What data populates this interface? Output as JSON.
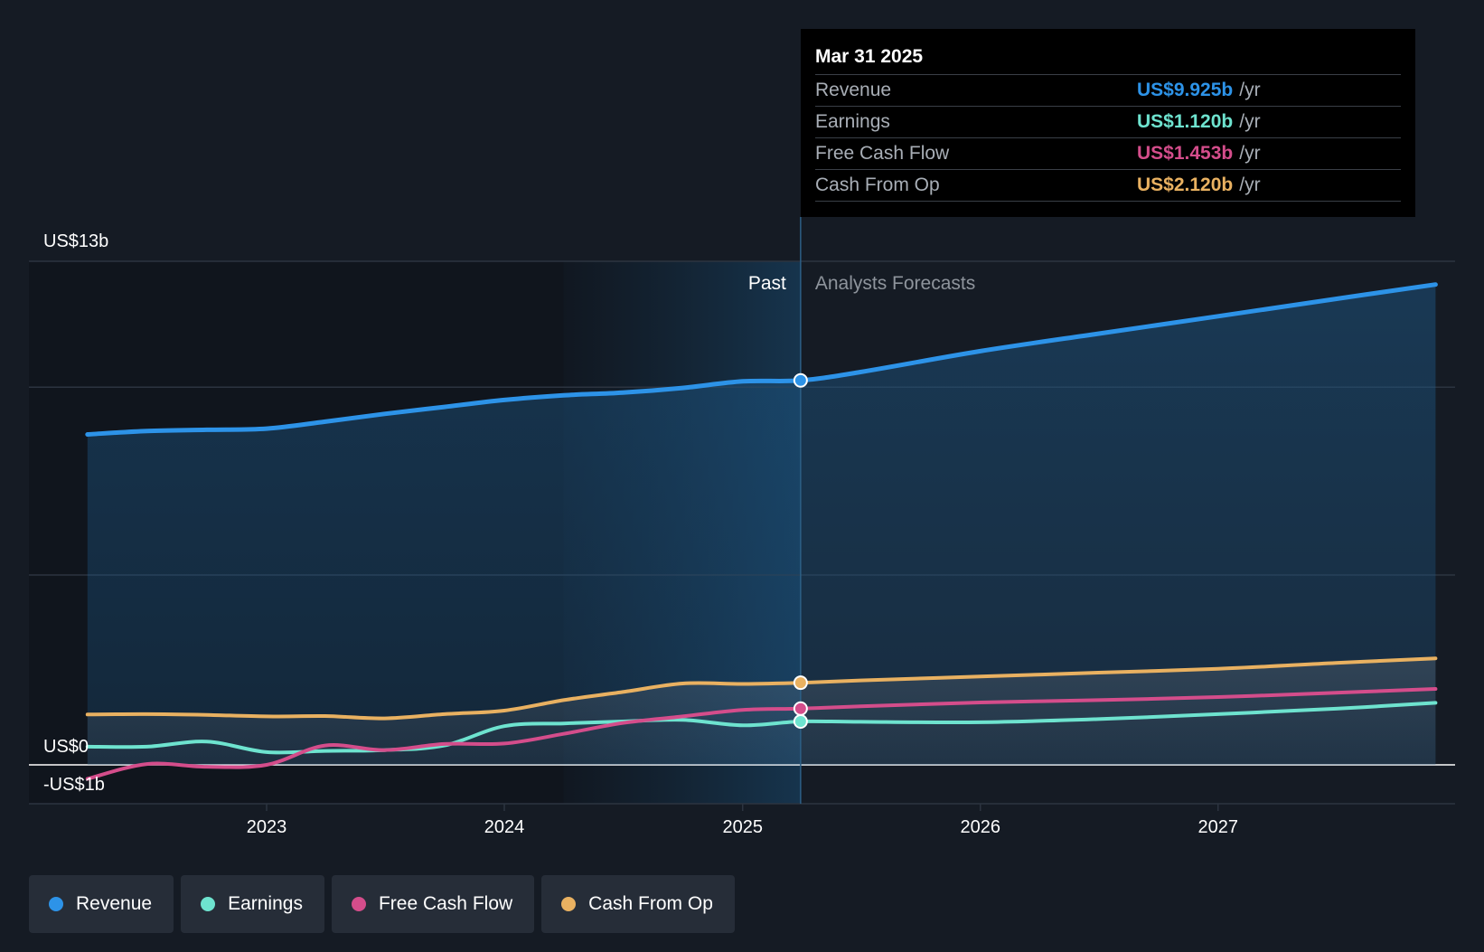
{
  "chart_data": {
    "type": "area",
    "x_ticks": [
      "2023",
      "2024",
      "2025",
      "2026",
      "2027"
    ],
    "y_labels": {
      "top": "US$13b",
      "zero": "US$0",
      "bottom": "-US$1b"
    },
    "ylim": [
      -1,
      13
    ],
    "sections": {
      "past": "Past",
      "forecast": "Analysts Forecasts"
    },
    "tooltip": {
      "date": "Mar 31 2025",
      "unit": "/yr",
      "rows": [
        {
          "label": "Revenue",
          "value": "US$9.925b",
          "color": "#2d93e8"
        },
        {
          "label": "Earnings",
          "value": "US$1.120b",
          "color": "#6ee3cf"
        },
        {
          "label": "Free Cash Flow",
          "value": "US$1.453b",
          "color": "#d44d8b"
        },
        {
          "label": "Cash From Op",
          "value": "US$2.120b",
          "color": "#e9b161"
        }
      ]
    },
    "series": [
      {
        "name": "Revenue",
        "color": "#2d93e8",
        "points": [
          [
            "2022-04-01",
            8.53
          ],
          [
            "2022-07-01",
            8.62
          ],
          [
            "2022-10-01",
            8.65
          ],
          [
            "2023-01-01",
            8.68
          ],
          [
            "2023-04-01",
            8.86
          ],
          [
            "2023-07-01",
            9.06
          ],
          [
            "2023-10-01",
            9.24
          ],
          [
            "2024-01-01",
            9.42
          ],
          [
            "2024-04-01",
            9.54
          ],
          [
            "2024-07-01",
            9.61
          ],
          [
            "2024-10-01",
            9.73
          ],
          [
            "2025-01-01",
            9.9
          ],
          [
            "2025-03-31",
            9.925
          ],
          [
            "2025-07-01",
            10.14
          ],
          [
            "2026-01-01",
            10.68
          ],
          [
            "2026-07-01",
            11.13
          ],
          [
            "2027-01-01",
            11.58
          ],
          [
            "2027-07-01",
            12.03
          ],
          [
            "2027-12-01",
            12.4
          ]
        ]
      },
      {
        "name": "Earnings",
        "color": "#6ee3cf",
        "points": [
          [
            "2022-04-01",
            0.47
          ],
          [
            "2022-07-01",
            0.47
          ],
          [
            "2022-10-01",
            0.6
          ],
          [
            "2023-01-01",
            0.33
          ],
          [
            "2023-04-01",
            0.36
          ],
          [
            "2023-07-01",
            0.38
          ],
          [
            "2023-10-01",
            0.5
          ],
          [
            "2024-01-01",
            1.0
          ],
          [
            "2024-04-01",
            1.07
          ],
          [
            "2024-07-01",
            1.12
          ],
          [
            "2024-10-01",
            1.16
          ],
          [
            "2025-01-01",
            1.02
          ],
          [
            "2025-03-31",
            1.12
          ],
          [
            "2025-07-01",
            1.11
          ],
          [
            "2026-01-01",
            1.1
          ],
          [
            "2026-07-01",
            1.18
          ],
          [
            "2027-01-01",
            1.31
          ],
          [
            "2027-07-01",
            1.45
          ],
          [
            "2027-12-01",
            1.6
          ]
        ]
      },
      {
        "name": "Free Cash Flow",
        "color": "#d44d8b",
        "points": [
          [
            "2022-04-01",
            -0.36
          ],
          [
            "2022-07-01",
            0.02
          ],
          [
            "2022-10-01",
            -0.05
          ],
          [
            "2023-01-01",
            0.0
          ],
          [
            "2023-04-01",
            0.5
          ],
          [
            "2023-07-01",
            0.38
          ],
          [
            "2023-10-01",
            0.54
          ],
          [
            "2024-01-01",
            0.55
          ],
          [
            "2024-04-01",
            0.8
          ],
          [
            "2024-07-01",
            1.08
          ],
          [
            "2024-10-01",
            1.25
          ],
          [
            "2025-01-01",
            1.42
          ],
          [
            "2025-03-31",
            1.453
          ],
          [
            "2025-07-01",
            1.51
          ],
          [
            "2026-01-01",
            1.61
          ],
          [
            "2026-07-01",
            1.67
          ],
          [
            "2027-01-01",
            1.75
          ],
          [
            "2027-07-01",
            1.86
          ],
          [
            "2027-12-01",
            1.96
          ]
        ]
      },
      {
        "name": "Cash From Op",
        "color": "#e9b161",
        "points": [
          [
            "2022-04-01",
            1.3
          ],
          [
            "2022-07-01",
            1.31
          ],
          [
            "2022-10-01",
            1.29
          ],
          [
            "2023-01-01",
            1.25
          ],
          [
            "2023-04-01",
            1.26
          ],
          [
            "2023-07-01",
            1.2
          ],
          [
            "2023-10-01",
            1.31
          ],
          [
            "2024-01-01",
            1.4
          ],
          [
            "2024-04-01",
            1.67
          ],
          [
            "2024-07-01",
            1.88
          ],
          [
            "2024-10-01",
            2.1
          ],
          [
            "2025-01-01",
            2.09
          ],
          [
            "2025-03-31",
            2.12
          ],
          [
            "2025-07-01",
            2.18
          ],
          [
            "2026-01-01",
            2.28
          ],
          [
            "2026-07-01",
            2.38
          ],
          [
            "2027-01-01",
            2.48
          ],
          [
            "2027-07-01",
            2.63
          ],
          [
            "2027-12-01",
            2.75
          ]
        ]
      }
    ]
  },
  "legend": [
    {
      "label": "Revenue",
      "color": "#2d93e8"
    },
    {
      "label": "Earnings",
      "color": "#6ee3cf"
    },
    {
      "label": "Free Cash Flow",
      "color": "#d44d8b"
    },
    {
      "label": "Cash From Op",
      "color": "#e9b161"
    }
  ]
}
